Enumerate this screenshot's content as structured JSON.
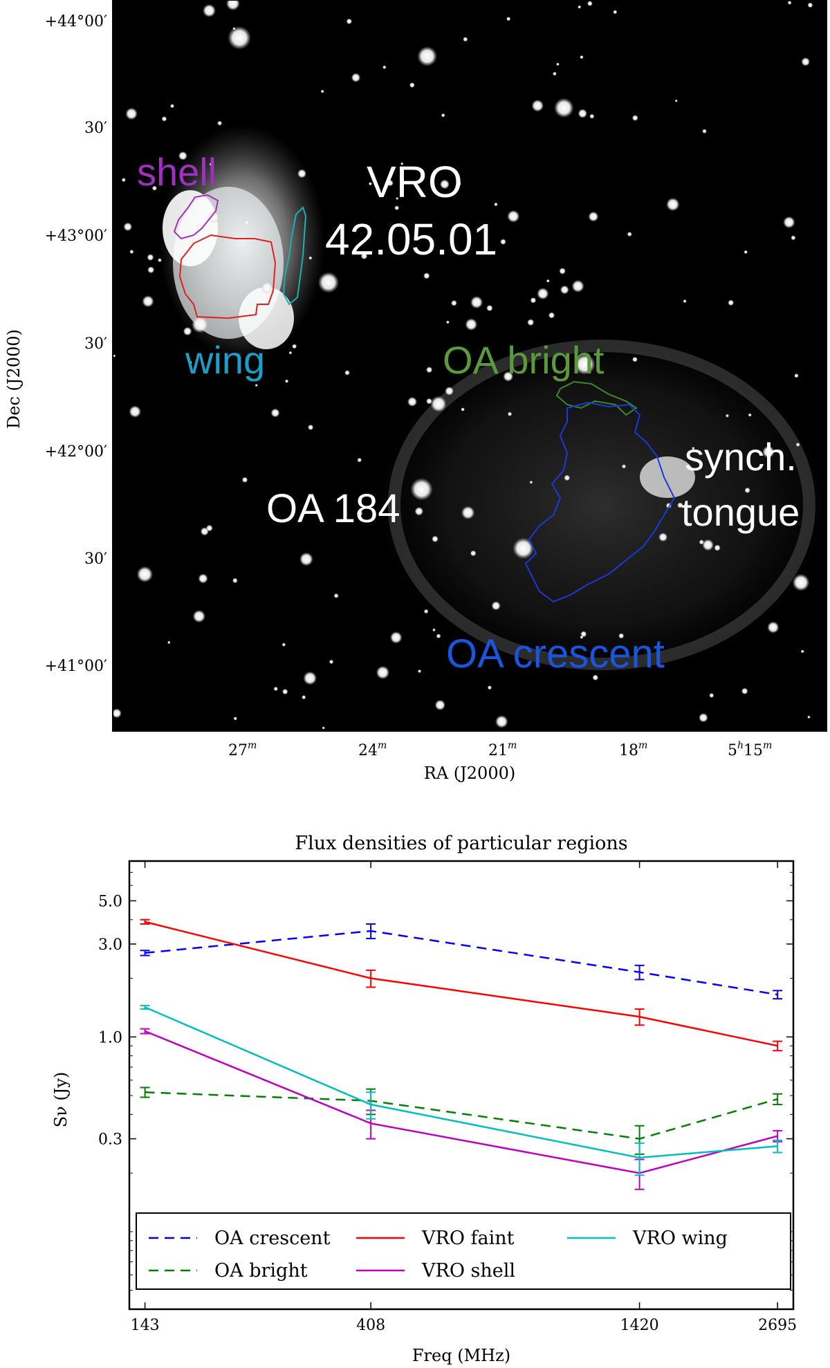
{
  "sky_image": {
    "xlabel": "RA (J2000)",
    "ylabel": "Dec (J2000)",
    "ra_ticks": [
      "27",
      "24",
      "21",
      "18",
      "5",
      "15"
    ],
    "ra_tick_units": {
      "m": "m",
      "h": "h"
    },
    "dec_ticks": [
      "+44°00′",
      "30′",
      "+43°00′",
      "30′",
      "+42°00′",
      "30′",
      "+41°00′"
    ],
    "labels": {
      "shell": "shell",
      "wing": "wing",
      "vro_line1": "VRO",
      "vro_line2": "42.05.01",
      "oa_bright": "OA bright",
      "synch_line1": "synch.",
      "synch_line2": "tongue",
      "oa184": "OA 184",
      "oa_crescent": "OA crescent"
    },
    "colors": {
      "background": "#000000",
      "shell": "#a030c0",
      "wing": "#1aa0c8",
      "faint_region": "#e02020",
      "wing_region": "#20b0b0",
      "oa_bright": "#5a9a3a",
      "oa_crescent": "#1a55e0"
    }
  },
  "chart_data": {
    "type": "line",
    "title": "Flux densities of particular regions",
    "xlabel": "Freq (MHz)",
    "ylabel": "Sν (Jy)",
    "xscale": "log",
    "yscale": "log",
    "x": [
      143,
      408,
      1420,
      2695
    ],
    "x_tick_labels": [
      "143",
      "408",
      "1420",
      "2695"
    ],
    "y_tick_labels": [
      "5.0",
      "3.0",
      "1.0",
      "0.3"
    ],
    "y_ticks": [
      5.0,
      3.0,
      1.0,
      0.3
    ],
    "xlim": [
      133,
      2900
    ],
    "ylim": [
      0.04,
      8.0
    ],
    "legend_position": "lower center",
    "series": [
      {
        "name": "OA crescent",
        "color": "#0000ff",
        "dash": "dashed",
        "values": [
          2.7,
          3.5,
          2.15,
          1.65
        ],
        "err": [
          0.08,
          0.3,
          0.18,
          0.08
        ]
      },
      {
        "name": "OA bright",
        "color": "#008000",
        "dash": "dashed",
        "values": [
          0.52,
          0.47,
          0.3,
          0.48
        ],
        "err": [
          0.03,
          0.07,
          0.05,
          0.03
        ]
      },
      {
        "name": "VRO faint",
        "color": "#ff0000",
        "dash": "solid",
        "values": [
          3.9,
          2.0,
          1.27,
          0.9
        ],
        "err": [
          0.1,
          0.2,
          0.12,
          0.05
        ]
      },
      {
        "name": "VRO shell",
        "color": "#c000c0",
        "dash": "solid",
        "values": [
          1.07,
          0.36,
          0.2,
          0.31
        ],
        "err": [
          0.03,
          0.06,
          0.035,
          0.02
        ]
      },
      {
        "name": "VRO wing",
        "color": "#00bfbf",
        "dash": "solid",
        "values": [
          1.42,
          0.45,
          0.24,
          0.275
        ],
        "err": [
          0.03,
          0.07,
          0.045,
          0.02
        ]
      }
    ]
  }
}
